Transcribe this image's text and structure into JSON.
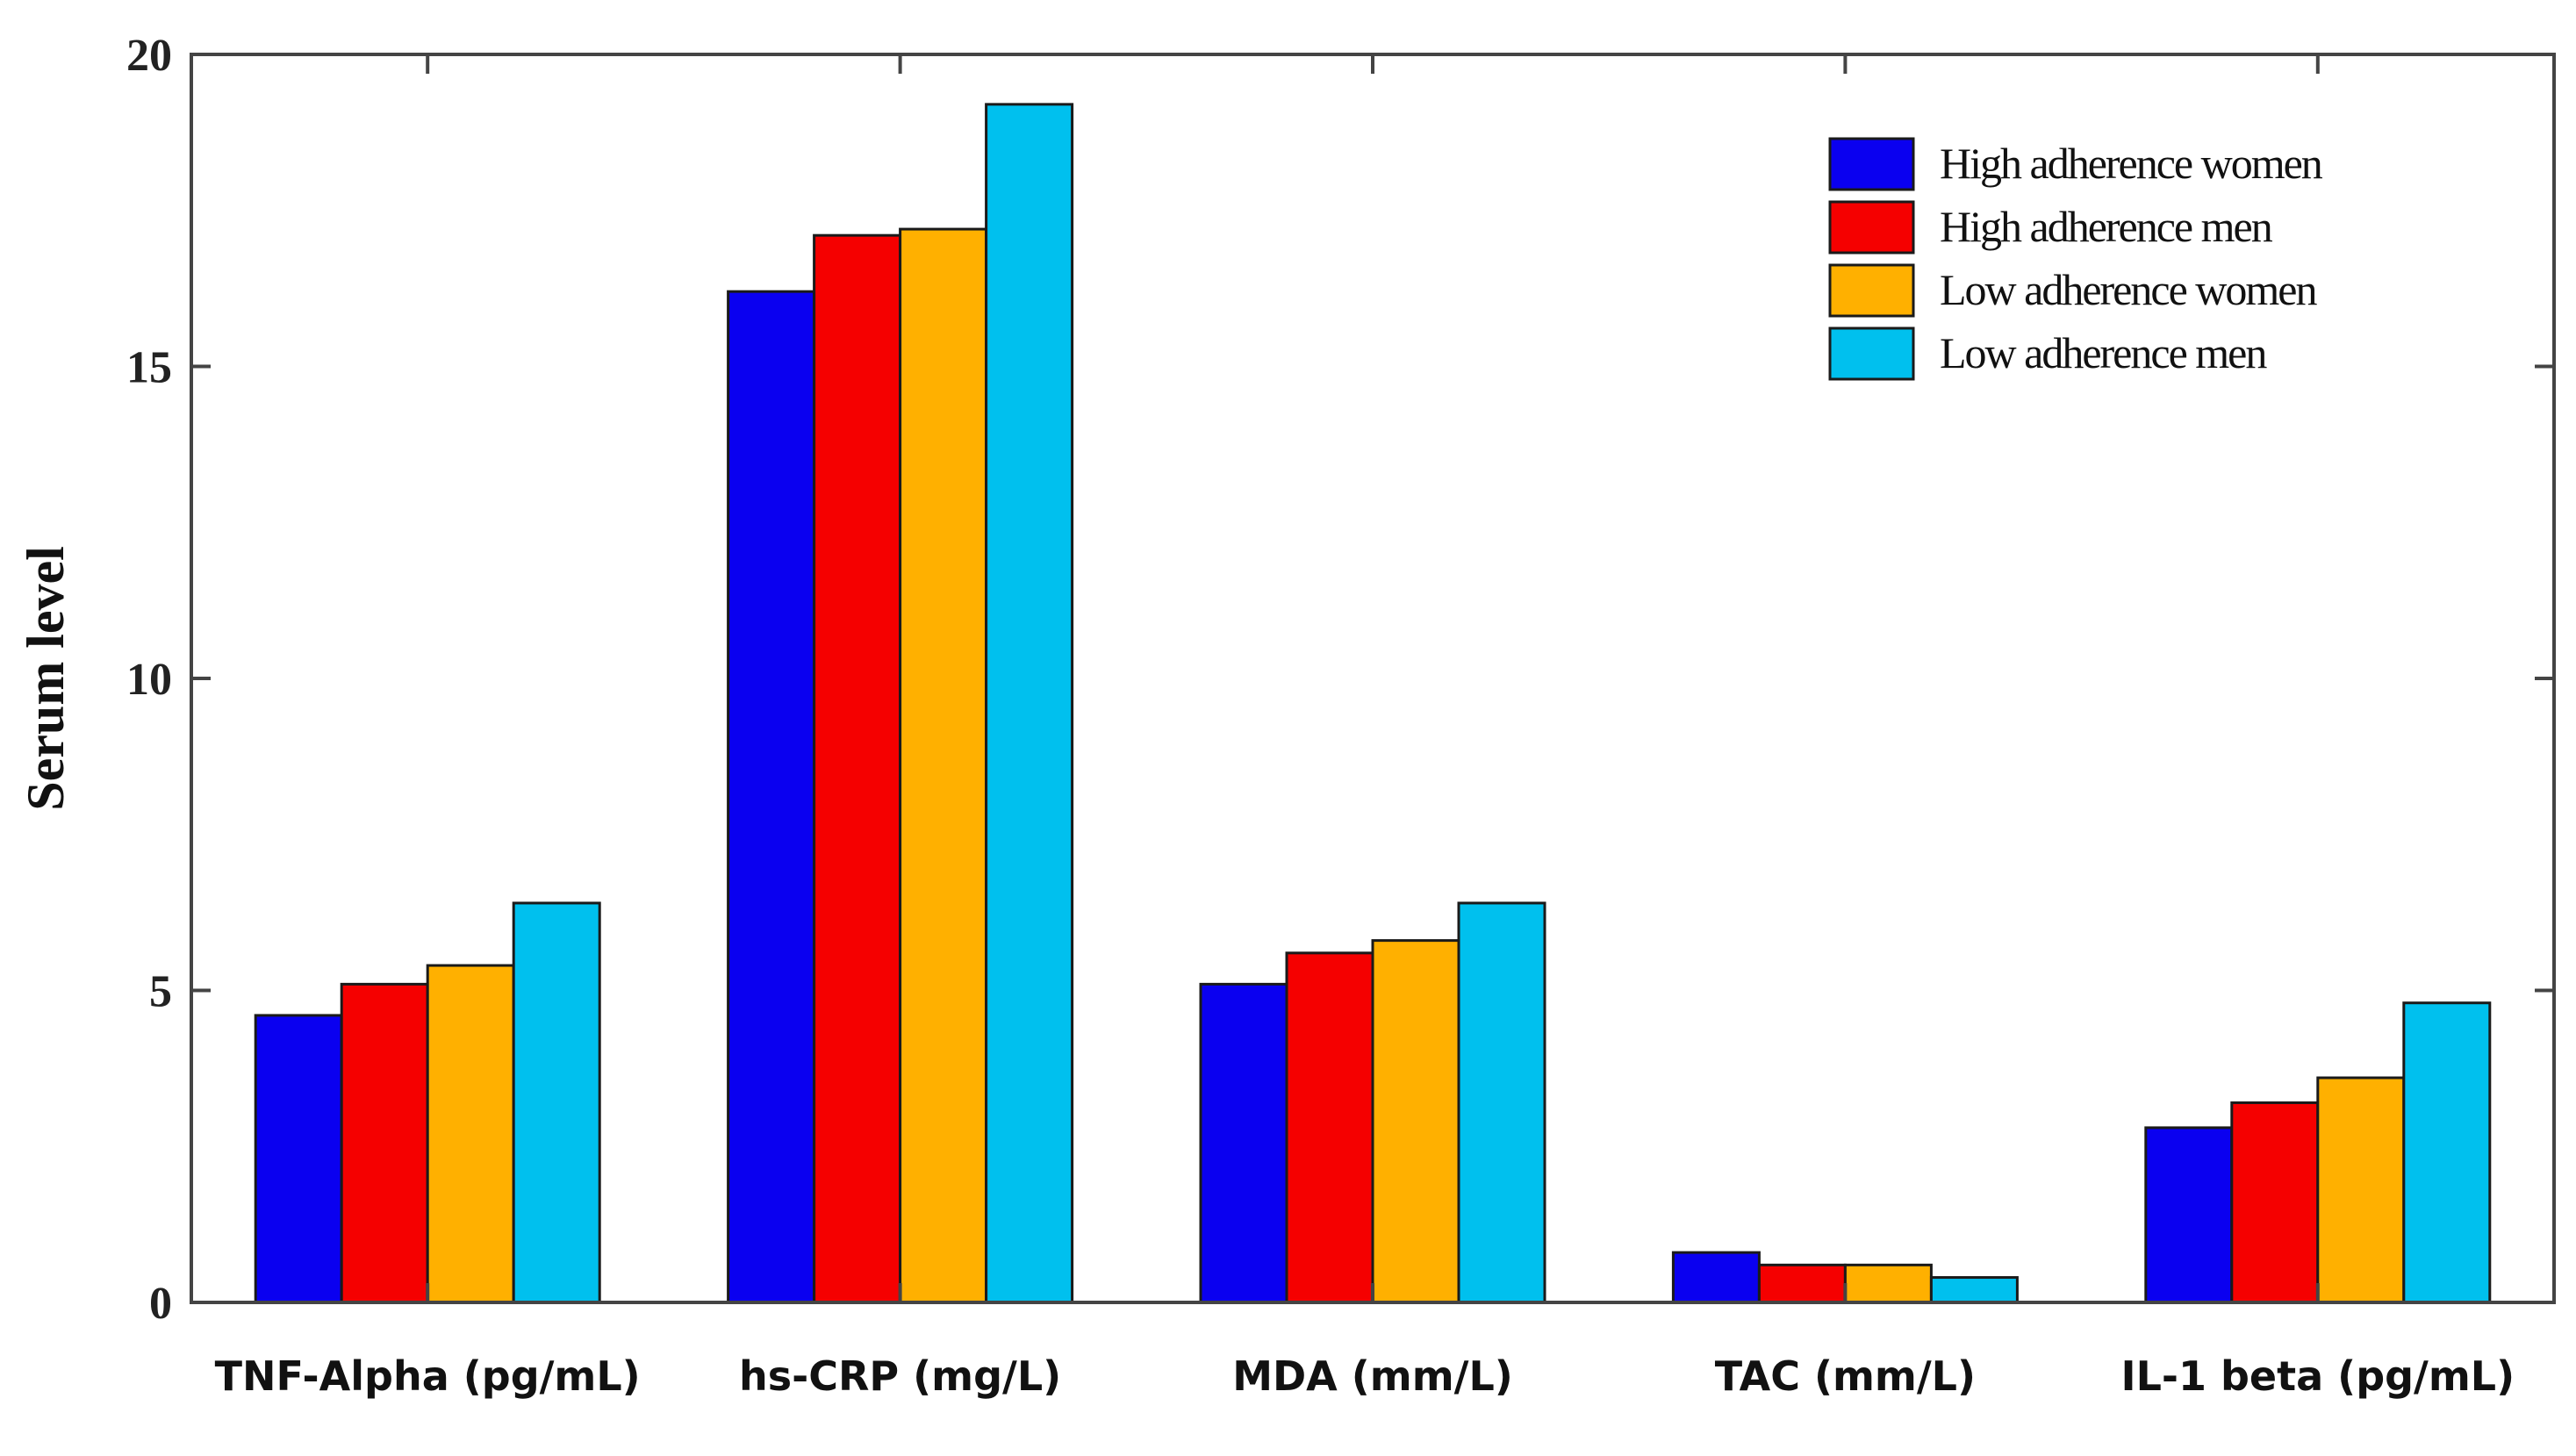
{
  "chart_data": {
    "type": "bar",
    "title": "",
    "xlabel": "",
    "ylabel": "Serum level",
    "ylim": [
      0,
      20
    ],
    "yticks": [
      0,
      5,
      10,
      15,
      20
    ],
    "grid": false,
    "legend_position": "top-right",
    "categories": [
      "TNF-Alpha (pg/mL)",
      "hs-CRP (mg/L)",
      "MDA (mm/L)",
      "TAC (mm/L)",
      "IL-1 beta (pg/mL)"
    ],
    "series": [
      {
        "name": "High adherence women",
        "color": "#0a00f0",
        "values": [
          4.6,
          16.2,
          5.1,
          0.8,
          2.8
        ]
      },
      {
        "name": "High adherence men",
        "color": "#f50000",
        "values": [
          5.1,
          17.1,
          5.6,
          0.6,
          3.2
        ]
      },
      {
        "name": "Low adherence women",
        "color": "#ffb000",
        "values": [
          5.4,
          17.2,
          5.8,
          0.6,
          3.6
        ]
      },
      {
        "name": "Low adherence men",
        "color": "#00c0ee",
        "values": [
          6.4,
          19.2,
          6.4,
          0.4,
          4.8
        ]
      }
    ]
  }
}
